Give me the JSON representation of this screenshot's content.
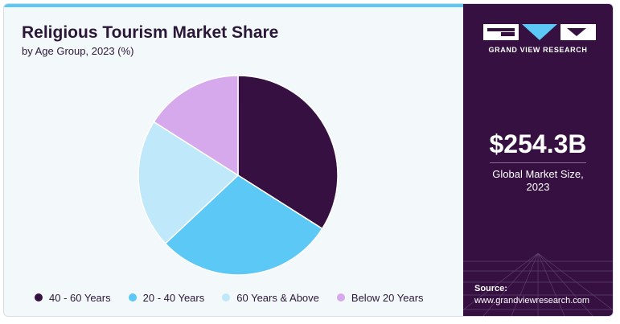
{
  "title": "Religious Tourism Market Share",
  "subtitle": "by Age Group, 2023 (%)",
  "brand": "GRAND VIEW RESEARCH",
  "market_size": "$254.3B",
  "market_caption_line1": "Global Market Size,",
  "market_caption_line2": "2023",
  "source_label": "Source:",
  "source_url": "www.grandviewresearch.com",
  "colors": {
    "accent": "#5bc8f5",
    "sidebar": "#351041"
  },
  "chart_data": {
    "type": "pie",
    "categories": [
      "40 - 60 Years",
      "20 - 40 Years",
      "60 Years & Above",
      "Below 20 Years"
    ],
    "values": [
      34,
      29,
      21,
      16
    ],
    "colors": [
      "#351041",
      "#5bc8f5",
      "#bfe8fa",
      "#d6a8ec"
    ],
    "legend_position": "bottom"
  }
}
